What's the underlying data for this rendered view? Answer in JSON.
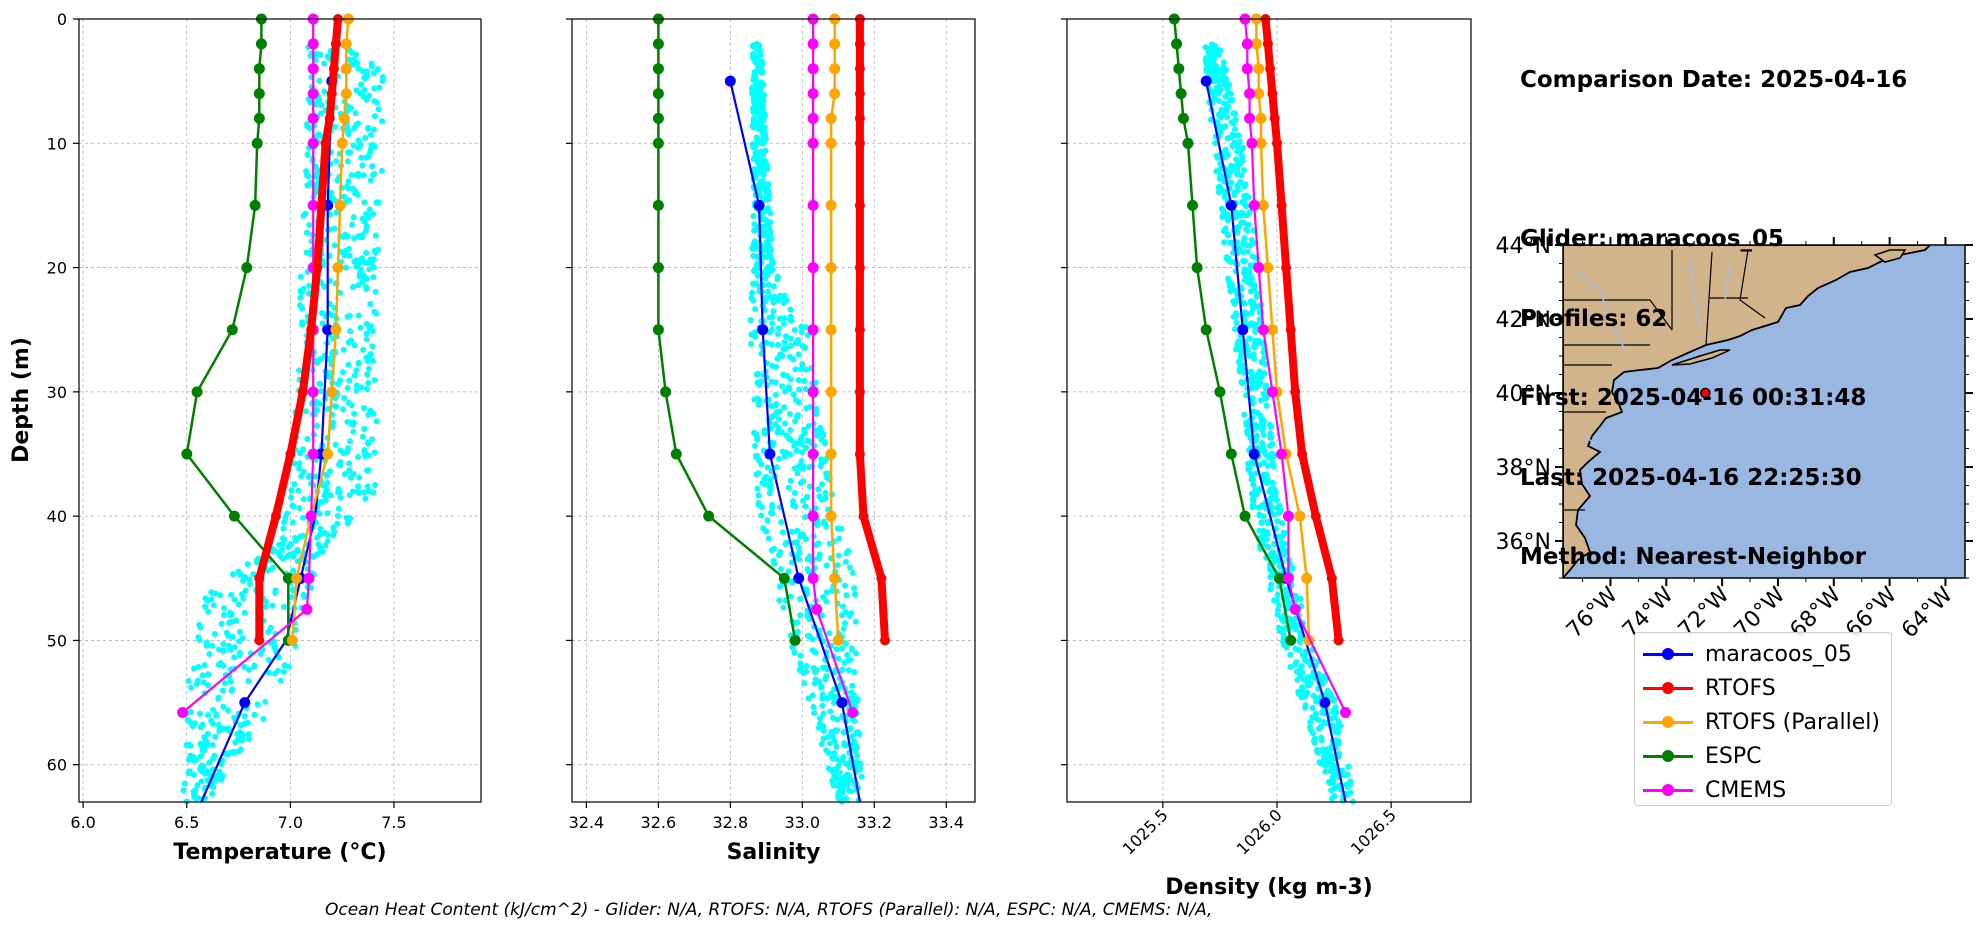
{
  "info": {
    "comparison_date": "Comparison Date: 2025-04-16",
    "glider": "Glider: maracoos_05",
    "profiles": "Profiles: 62",
    "first": "First: 2025-04-16 00:31:48",
    "last": "Last: 2025-04-16 22:25:30",
    "method": "Method: Nearest-Neighbor"
  },
  "footer": "Ocean Heat Content (kJ/cm^2) - Glider: N/A,  RTOFS: N/A,  RTOFS (Parallel): N/A,  ESPC: N/A,  CMEMS: N/A,",
  "colors": {
    "glider": "#0000ff",
    "rtofs": "#ff0000",
    "rtofs_parallel": "#ffa500",
    "espc": "#008000",
    "cmems": "#ff00ff",
    "raw_glider": "#00ffff",
    "land": "#d2b48c",
    "ocean": "#9ab7e2"
  },
  "legend": [
    {
      "label": "maracoos_05",
      "color": "#0000ff"
    },
    {
      "label": "RTOFS",
      "color": "#ff0000"
    },
    {
      "label": "RTOFS (Parallel)",
      "color": "#ffa500"
    },
    {
      "label": "ESPC",
      "color": "#008000"
    },
    {
      "label": "CMEMS",
      "color": "#ff00ff"
    }
  ],
  "chart_data": [
    {
      "type": "line",
      "xlabel": "Temperature (°C)",
      "ylabel": "Depth (m)",
      "xlim": [
        5.98,
        7.92
      ],
      "ylim": [
        63,
        0
      ],
      "y_inverted": true,
      "x_ticks": [
        "6.0",
        "6.5",
        "7.0",
        "7.5"
      ],
      "x_tick_values": [
        6.0,
        6.5,
        7.0,
        7.5
      ],
      "y_ticks": [
        "0",
        "10",
        "20",
        "30",
        "40",
        "50",
        "60"
      ],
      "y_tick_values": [
        0,
        10,
        20,
        30,
        40,
        50,
        60
      ],
      "grid": true,
      "series": [
        {
          "name": "maracoos_05",
          "x": [
            7.2,
            7.18,
            7.18,
            7.15,
            7.12,
            7.05,
            6.98,
            6.78,
            6.57
          ],
          "y": [
            5,
            15,
            25,
            35,
            40,
            45,
            50,
            55,
            63
          ],
          "marker_depths": [
            5,
            15,
            25,
            35,
            45,
            55
          ]
        },
        {
          "name": "RTOFS",
          "x": [
            7.23,
            7.22,
            7.21,
            7.2,
            7.19,
            7.17,
            7.15,
            7.13,
            7.1,
            7.06,
            7.0,
            6.93,
            6.85,
            6.85
          ],
          "y": [
            0,
            2,
            4,
            6,
            8,
            10,
            15,
            20,
            25,
            30,
            35,
            40,
            45,
            50
          ]
        },
        {
          "name": "RTOFS (Parallel)",
          "x": [
            7.28,
            7.27,
            7.27,
            7.27,
            7.26,
            7.25,
            7.24,
            7.23,
            7.22,
            7.2,
            7.18,
            7.1,
            7.03,
            7.01
          ],
          "y": [
            0,
            2,
            4,
            6,
            8,
            10,
            15,
            20,
            25,
            30,
            35,
            40,
            45,
            50
          ]
        },
        {
          "name": "ESPC",
          "x": [
            6.86,
            6.86,
            6.85,
            6.85,
            6.85,
            6.84,
            6.83,
            6.79,
            6.72,
            6.55,
            6.5,
            6.73,
            6.99,
            6.99
          ],
          "y": [
            0,
            2,
            4,
            6,
            8,
            10,
            15,
            20,
            25,
            30,
            35,
            40,
            45,
            50
          ]
        },
        {
          "name": "CMEMS",
          "x": [
            7.11,
            7.11,
            7.11,
            7.11,
            7.11,
            7.11,
            7.11,
            7.11,
            7.11,
            7.11,
            7.11,
            7.1,
            7.09,
            7.08,
            6.48
          ],
          "y": [
            0,
            2,
            4,
            6,
            8,
            10,
            15,
            20,
            25,
            30,
            35,
            40,
            45,
            47.5,
            55.8
          ]
        }
      ]
    },
    {
      "type": "line",
      "xlabel": "Salinity",
      "xlim": [
        32.36,
        33.48
      ],
      "ylim": [
        63,
        0
      ],
      "y_inverted": true,
      "x_ticks": [
        "32.4",
        "32.6",
        "32.8",
        "33.0",
        "33.2",
        "33.4"
      ],
      "x_tick_values": [
        32.4,
        32.6,
        32.8,
        33.0,
        33.2,
        33.4
      ],
      "grid": true,
      "series": [
        {
          "name": "maracoos_05",
          "x": [
            32.8,
            32.88,
            32.89,
            32.91,
            32.99,
            33.11,
            33.16
          ],
          "y": [
            5,
            15,
            25,
            35,
            45,
            55,
            63
          ],
          "marker_depths": [
            5,
            15,
            25,
            35,
            45,
            55
          ]
        },
        {
          "name": "RTOFS",
          "x": [
            33.16,
            33.16,
            33.16,
            33.16,
            33.16,
            33.16,
            33.16,
            33.16,
            33.16,
            33.16,
            33.16,
            33.17,
            33.22,
            33.23
          ],
          "y": [
            0,
            2,
            4,
            6,
            8,
            10,
            15,
            20,
            25,
            30,
            35,
            40,
            45,
            50
          ]
        },
        {
          "name": "RTOFS (Parallel)",
          "x": [
            33.09,
            33.09,
            33.09,
            33.09,
            33.08,
            33.08,
            33.08,
            33.08,
            33.08,
            33.08,
            33.08,
            33.08,
            33.09,
            33.1
          ],
          "y": [
            0,
            2,
            4,
            6,
            8,
            10,
            15,
            20,
            25,
            30,
            35,
            40,
            45,
            50
          ]
        },
        {
          "name": "ESPC",
          "x": [
            32.6,
            32.6,
            32.6,
            32.6,
            32.6,
            32.6,
            32.6,
            32.6,
            32.6,
            32.62,
            32.65,
            32.74,
            32.95,
            32.98
          ],
          "y": [
            0,
            2,
            4,
            6,
            8,
            10,
            15,
            20,
            25,
            30,
            35,
            40,
            45,
            50
          ]
        },
        {
          "name": "CMEMS",
          "x": [
            33.03,
            33.03,
            33.03,
            33.03,
            33.03,
            33.03,
            33.03,
            33.03,
            33.03,
            33.03,
            33.03,
            33.03,
            33.03,
            33.04,
            33.14
          ],
          "y": [
            0,
            2,
            4,
            6,
            8,
            10,
            15,
            20,
            25,
            30,
            35,
            40,
            45,
            47.5,
            55.8
          ]
        }
      ]
    },
    {
      "type": "line",
      "xlabel": "Density (kg m-3)",
      "xlim": [
        1025.08,
        1026.85
      ],
      "ylim": [
        63,
        0
      ],
      "y_inverted": true,
      "x_ticks": [
        "1025.5",
        "1026.0",
        "1026.5"
      ],
      "x_tick_values": [
        1025.5,
        1026.0,
        1026.5
      ],
      "grid": true,
      "series": [
        {
          "name": "maracoos_05",
          "x": [
            1025.69,
            1025.8,
            1025.85,
            1025.9,
            1026.04,
            1026.21,
            1026.3
          ],
          "y": [
            5,
            15,
            25,
            35,
            45,
            55,
            63
          ],
          "marker_depths": [
            5,
            15,
            25,
            35,
            45,
            55
          ]
        },
        {
          "name": "RTOFS",
          "x": [
            1025.95,
            1025.96,
            1025.97,
            1025.98,
            1025.99,
            1026.0,
            1026.02,
            1026.04,
            1026.06,
            1026.08,
            1026.11,
            1026.17,
            1026.24,
            1026.27
          ],
          "y": [
            0,
            2,
            4,
            6,
            8,
            10,
            15,
            20,
            25,
            30,
            35,
            40,
            45,
            50
          ]
        },
        {
          "name": "RTOFS (Parallel)",
          "x": [
            1025.91,
            1025.91,
            1025.92,
            1025.92,
            1025.93,
            1025.93,
            1025.94,
            1025.96,
            1025.98,
            1026.0,
            1026.04,
            1026.1,
            1026.13,
            1026.14
          ],
          "y": [
            0,
            2,
            4,
            6,
            8,
            10,
            15,
            20,
            25,
            30,
            35,
            40,
            45,
            50
          ]
        },
        {
          "name": "ESPC",
          "x": [
            1025.55,
            1025.56,
            1025.57,
            1025.58,
            1025.59,
            1025.61,
            1025.63,
            1025.65,
            1025.69,
            1025.75,
            1025.8,
            1025.86,
            1026.01,
            1026.06
          ],
          "y": [
            0,
            2,
            4,
            6,
            8,
            10,
            15,
            20,
            25,
            30,
            35,
            40,
            45,
            50
          ]
        },
        {
          "name": "CMEMS",
          "x": [
            1025.86,
            1025.87,
            1025.87,
            1025.88,
            1025.88,
            1025.89,
            1025.9,
            1025.92,
            1025.94,
            1025.98,
            1026.02,
            1026.05,
            1026.05,
            1026.08,
            1026.3
          ],
          "y": [
            0,
            2,
            4,
            6,
            8,
            10,
            15,
            20,
            25,
            30,
            35,
            40,
            45,
            47.5,
            55.8
          ]
        }
      ]
    }
  ],
  "map": {
    "lat_ticks": [
      "44°N",
      "42°N",
      "40°N",
      "38°N",
      "36°N"
    ],
    "lat_values": [
      44,
      42,
      40,
      38,
      36
    ],
    "lon_ticks": [
      "76°W",
      "74°W",
      "72°W",
      "70°W",
      "68°W",
      "66°W",
      "64°W"
    ],
    "lon_values": [
      -76,
      -74,
      -72,
      -70,
      -68,
      -66,
      -64
    ],
    "lon_range": [
      -77.7,
      -63.3
    ],
    "lat_range": [
      35,
      44
    ],
    "glider_position": {
      "lon": -72.6,
      "lat": 40.0
    }
  }
}
